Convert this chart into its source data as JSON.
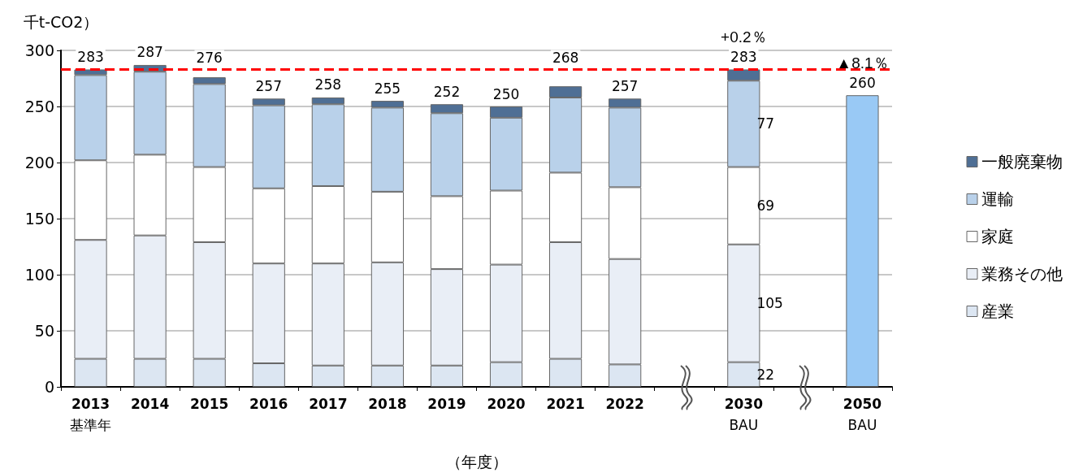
{
  "chart_data": {
    "type": "bar",
    "stacked": true,
    "ylabel": "千t-CO2）",
    "xlabel": "（年度）",
    "categories": [
      "2013\n基準年",
      "2014",
      "2015",
      "2016",
      "2017",
      "2018",
      "2019",
      "2020",
      "2021",
      "2022",
      null,
      "2030\nBAU",
      null,
      "2050\nBAU"
    ],
    "series": [
      {
        "name": "産業",
        "color": "#dce6f2",
        "values": [
          25,
          25,
          25,
          21,
          19,
          19,
          19,
          22,
          25,
          20,
          null,
          22,
          null,
          null
        ],
        "value_labels": [
          null,
          null,
          null,
          null,
          null,
          null,
          null,
          null,
          null,
          null,
          null,
          "22",
          null,
          null
        ]
      },
      {
        "name": "業務その他",
        "color": "#e9eef6",
        "values": [
          106,
          110,
          104,
          89,
          91,
          92,
          86,
          87,
          104,
          94,
          null,
          105,
          null,
          null
        ],
        "value_labels": [
          null,
          null,
          null,
          null,
          null,
          null,
          null,
          null,
          null,
          null,
          null,
          "105",
          null,
          null
        ]
      },
      {
        "name": "家庭",
        "color": "#ffffff",
        "values": [
          71,
          72,
          67,
          67,
          69,
          63,
          65,
          66,
          62,
          64,
          null,
          69,
          null,
          null
        ],
        "value_labels": [
          null,
          null,
          null,
          null,
          null,
          null,
          null,
          null,
          null,
          null,
          null,
          "69",
          null,
          null
        ]
      },
      {
        "name": "運輸",
        "color": "#b9d1ea",
        "values": [
          76,
          74,
          74,
          74,
          73,
          75,
          74,
          65,
          67,
          71,
          null,
          77,
          null,
          null
        ],
        "value_labels": [
          null,
          null,
          null,
          null,
          null,
          null,
          null,
          null,
          null,
          null,
          null,
          "77",
          null,
          null
        ]
      },
      {
        "name": "一般廃棄物",
        "color": "#4f6f95",
        "values": [
          5,
          6,
          6,
          6,
          6,
          6,
          8,
          10,
          10,
          8,
          null,
          10,
          null,
          null
        ]
      },
      {
        "color": "#99c9f5",
        "values": [
          null,
          null,
          null,
          null,
          null,
          null,
          null,
          null,
          null,
          null,
          null,
          null,
          null,
          260
        ]
      }
    ],
    "totals": [
      "283",
      "287",
      "276",
      "257",
      "258",
      "255",
      "252",
      "250",
      "268",
      "257",
      null,
      "283",
      null,
      "260"
    ],
    "ylim": [
      0,
      300
    ],
    "yticks": [
      0,
      50,
      100,
      150,
      200,
      250,
      300
    ],
    "grid": "y",
    "legend": "right",
    "ref_lines": [
      {
        "axis": "y",
        "value": 283,
        "color": "#ff0000",
        "line_style": "dashed"
      }
    ],
    "annotations": [
      {
        "text": "+0.2％",
        "x": "2030\nBAU",
        "y": 283
      },
      {
        "text": "▲8.1％",
        "x": "2050\nBAU",
        "y": 260
      }
    ]
  }
}
